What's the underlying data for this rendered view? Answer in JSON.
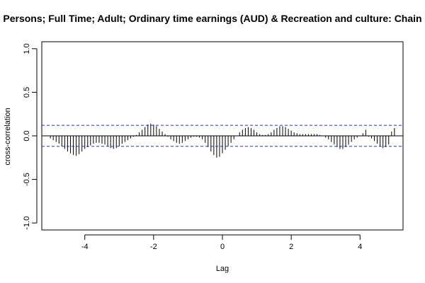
{
  "chart_data": {
    "type": "bar",
    "title": "Persons; Full Time; Adult; Ordinary time earnings (AUD) & Recreation and culture: Chain",
    "xlabel": "Lag",
    "ylabel": "cross-correlation",
    "xlim": [
      -5.25,
      5.25
    ],
    "ylim": [
      -1.0,
      1.0
    ],
    "x_ticks": [
      -4,
      -2,
      0,
      2,
      4
    ],
    "y_ticks": [
      -1.0,
      -0.5,
      0.0,
      0.5,
      1.0
    ],
    "y_tick_labels": [
      "-1.0",
      "-0.5",
      "0.0",
      "0.5",
      "1.0"
    ],
    "confidence_band": [
      0.121,
      -0.121
    ],
    "lag_step": 0.0833,
    "x": [
      -5.0,
      -4.9167,
      -4.8333,
      -4.75,
      -4.6667,
      -4.5833,
      -4.5,
      -4.4167,
      -4.3333,
      -4.25,
      -4.1667,
      -4.0833,
      -4.0,
      -3.9167,
      -3.8333,
      -3.75,
      -3.6667,
      -3.5833,
      -3.5,
      -3.4167,
      -3.3333,
      -3.25,
      -3.1667,
      -3.0833,
      -3.0,
      -2.9167,
      -2.8333,
      -2.75,
      -2.6667,
      -2.5833,
      -2.5,
      -2.4167,
      -2.3333,
      -2.25,
      -2.1667,
      -2.0833,
      -2.0,
      -1.9167,
      -1.8333,
      -1.75,
      -1.6667,
      -1.5833,
      -1.5,
      -1.4167,
      -1.3333,
      -1.25,
      -1.1667,
      -1.0833,
      -1.0,
      -0.9167,
      -0.8333,
      -0.75,
      -0.6667,
      -0.5833,
      -0.5,
      -0.4167,
      -0.3333,
      -0.25,
      -0.1667,
      -0.0833,
      0.0,
      0.0833,
      0.1667,
      0.25,
      0.3333,
      0.4167,
      0.5,
      0.5833,
      0.6667,
      0.75,
      0.8333,
      0.9167,
      1.0,
      1.0833,
      1.1667,
      1.25,
      1.3333,
      1.4167,
      1.5,
      1.5833,
      1.6667,
      1.75,
      1.8333,
      1.9167,
      2.0,
      2.0833,
      2.1667,
      2.25,
      2.3333,
      2.4167,
      2.5,
      2.5833,
      2.6667,
      2.75,
      2.8333,
      2.9167,
      3.0,
      3.0833,
      3.1667,
      3.25,
      3.3333,
      3.4167,
      3.5,
      3.5833,
      3.6667,
      3.75,
      3.8333,
      3.9167,
      4.0,
      4.0833,
      4.1667,
      4.25,
      4.3333,
      4.4167,
      4.5,
      4.5833,
      4.6667,
      4.75,
      4.8333,
      4.9167,
      5.0
    ],
    "values": [
      -0.03,
      -0.05,
      -0.07,
      -0.09,
      -0.12,
      -0.15,
      -0.18,
      -0.2,
      -0.22,
      -0.23,
      -0.21,
      -0.18,
      -0.15,
      -0.13,
      -0.11,
      -0.09,
      -0.08,
      -0.08,
      -0.09,
      -0.1,
      -0.12,
      -0.14,
      -0.15,
      -0.14,
      -0.12,
      -0.09,
      -0.07,
      -0.05,
      -0.03,
      -0.01,
      0.01,
      0.04,
      0.07,
      0.1,
      0.13,
      0.14,
      0.13,
      0.11,
      0.08,
      0.05,
      0.02,
      -0.01,
      -0.04,
      -0.06,
      -0.08,
      -0.09,
      -0.08,
      -0.06,
      -0.04,
      -0.02,
      -0.01,
      -0.01,
      -0.02,
      -0.04,
      -0.08,
      -0.13,
      -0.18,
      -0.22,
      -0.25,
      -0.24,
      -0.2,
      -0.16,
      -0.12,
      -0.08,
      -0.04,
      0.0,
      0.04,
      0.07,
      0.09,
      0.1,
      0.09,
      0.07,
      0.04,
      0.02,
      0.01,
      0.01,
      0.02,
      0.04,
      0.07,
      0.09,
      0.11,
      0.11,
      0.1,
      0.08,
      0.06,
      0.04,
      0.03,
      0.02,
      0.02,
      0.02,
      0.02,
      0.02,
      0.02,
      0.02,
      0.01,
      0.0,
      -0.02,
      -0.04,
      -0.07,
      -0.1,
      -0.13,
      -0.15,
      -0.15,
      -0.13,
      -0.1,
      -0.07,
      -0.04,
      -0.02,
      0.0,
      0.03,
      0.07,
      -0.01,
      -0.03,
      -0.06,
      -0.09,
      -0.12,
      -0.14,
      -0.13,
      -0.1,
      0.05,
      0.09
    ]
  }
}
